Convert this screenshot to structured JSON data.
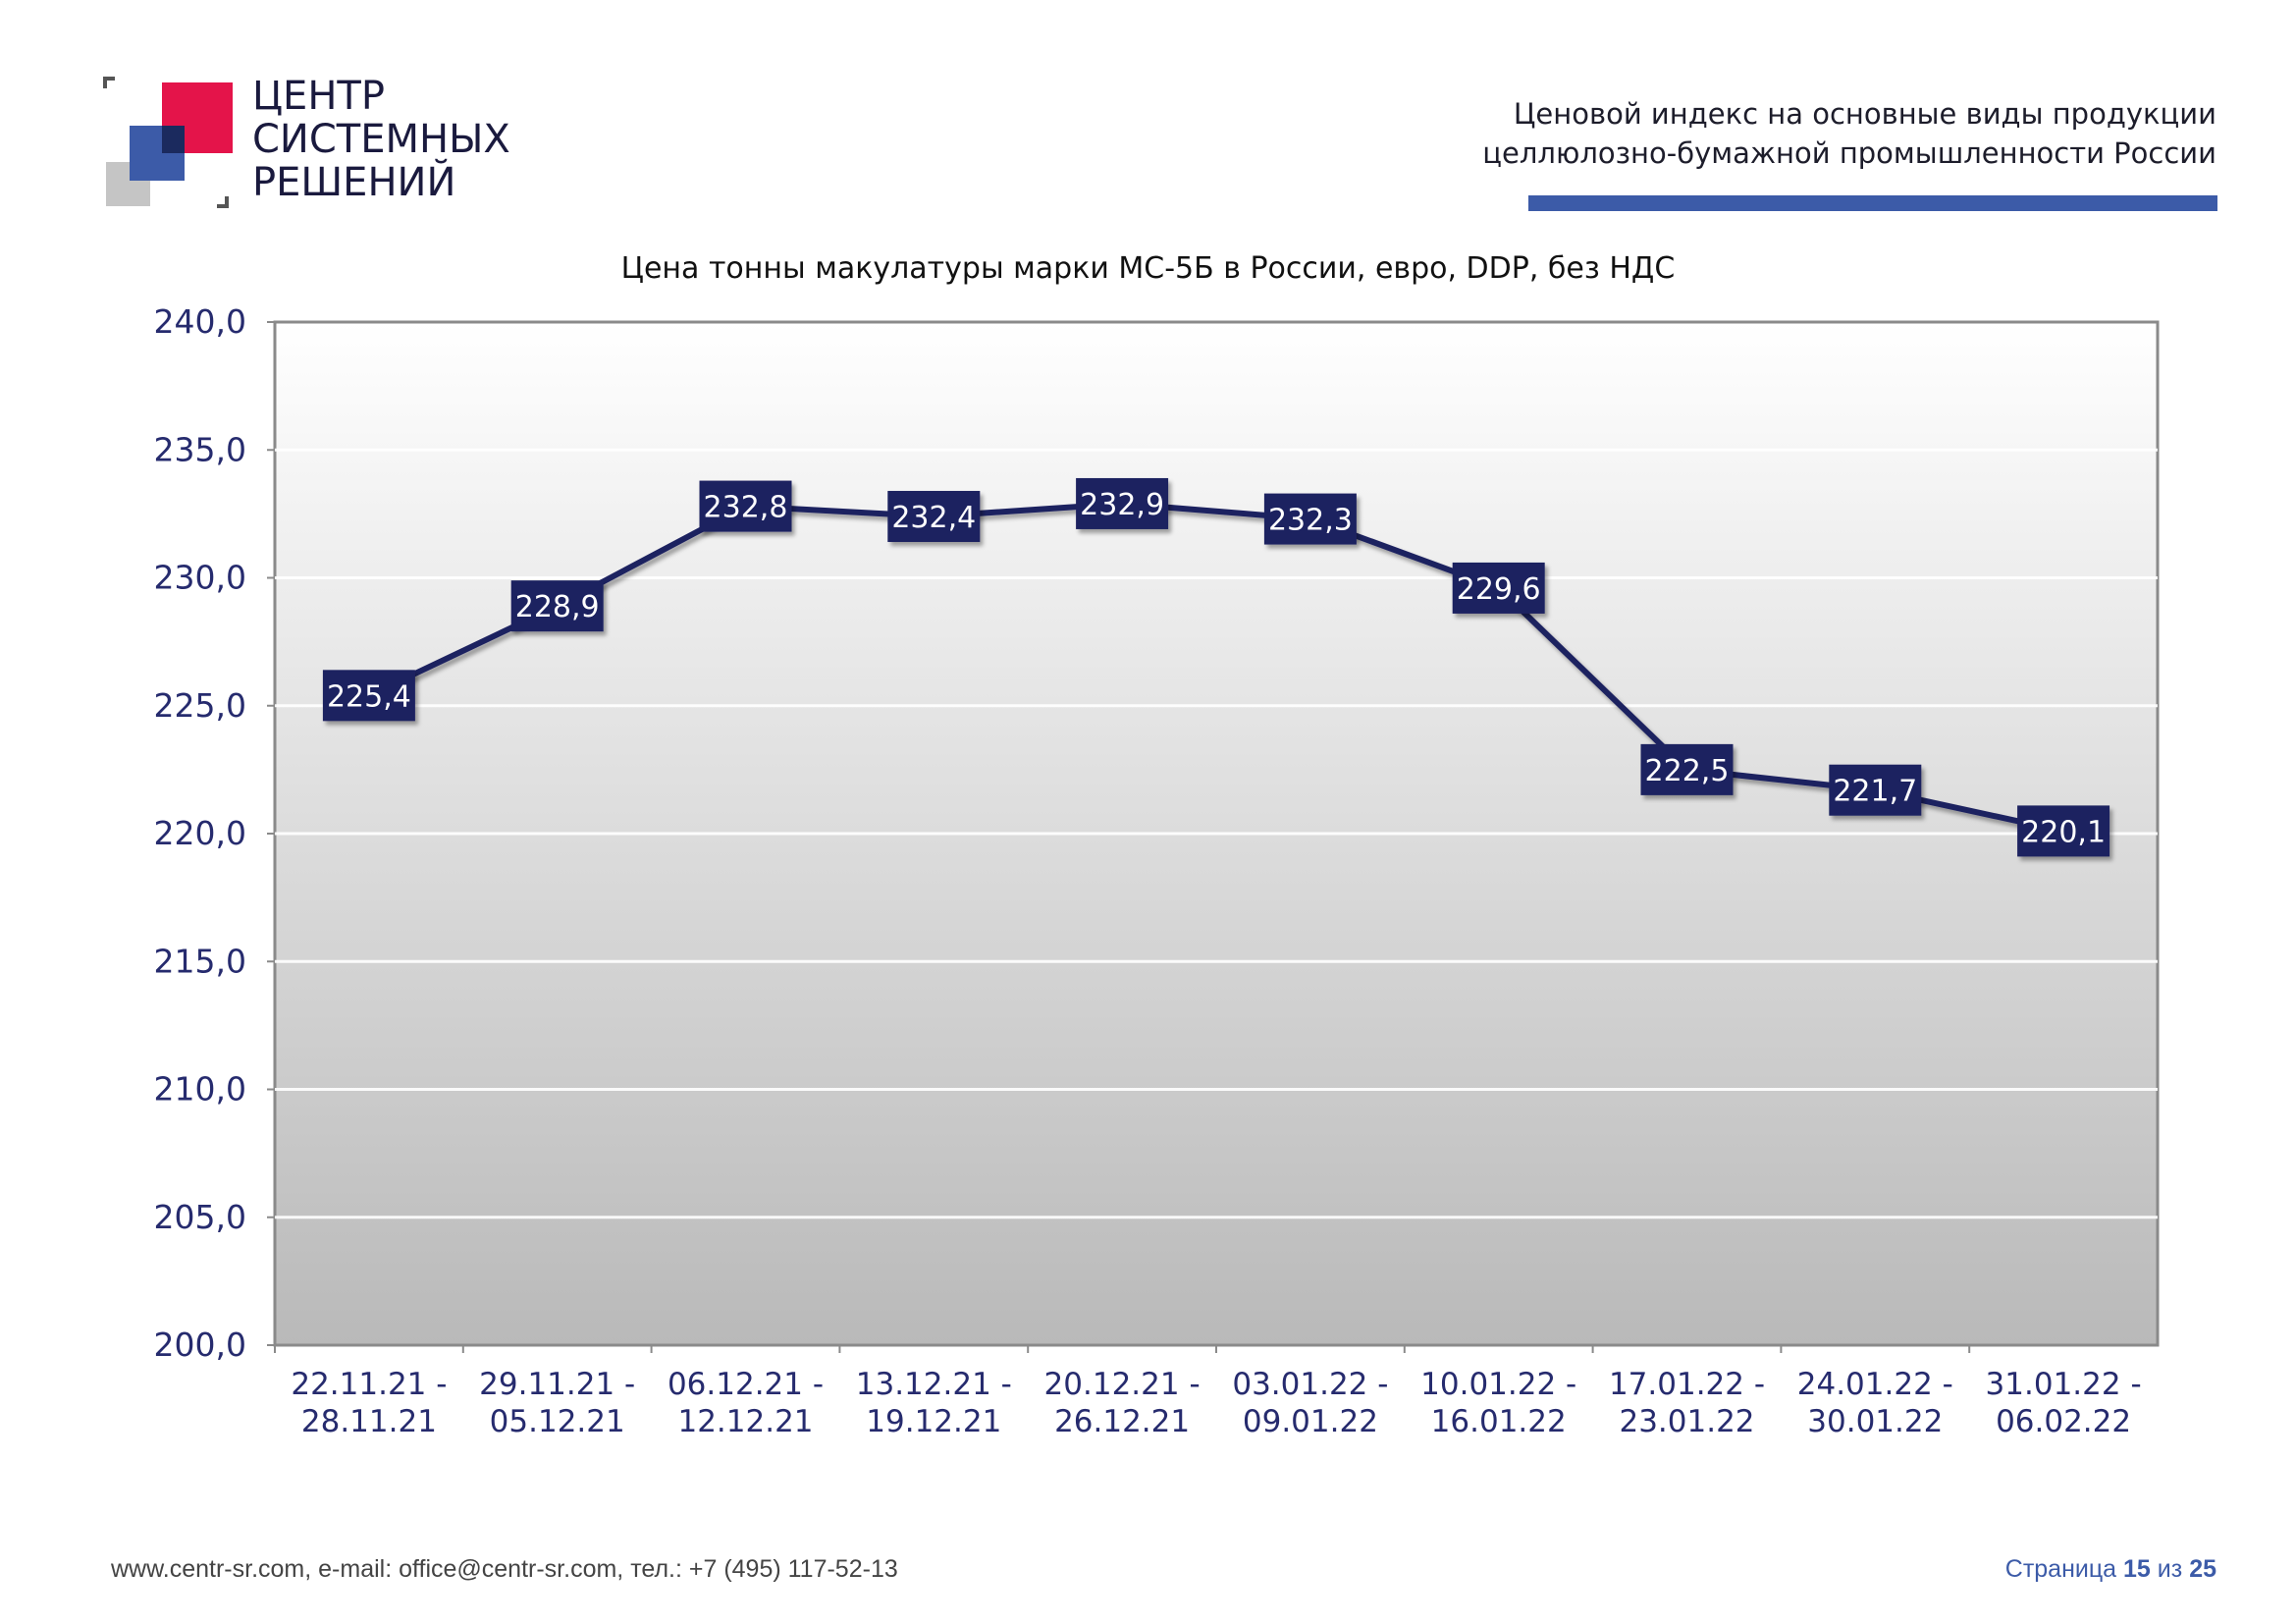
{
  "logo": {
    "lines": [
      "ЦЕНТР",
      "СИСТЕМНЫХ",
      "РЕШЕНИЙ"
    ],
    "colors": {
      "red": "#e4144a",
      "blue": "#3c5ba8",
      "dark": "#1b2a5e",
      "gray": "#c5c5c5"
    }
  },
  "header": {
    "line1": "Ценовой  индекс  на  основные виды продукции",
    "line2": "целлюлозно-бумажной промышленности России",
    "bar_color": "#3c5ba8"
  },
  "chart_data": {
    "type": "line",
    "title": "Цена тонны макулатуры марки МС-5Б в России, евро, DDP, без НДС",
    "categories": [
      [
        "22.11.21 -",
        "28.11.21"
      ],
      [
        "29.11.21 -",
        "05.12.21"
      ],
      [
        "06.12.21 -",
        "12.12.21"
      ],
      [
        "13.12.21 -",
        "19.12.21"
      ],
      [
        "20.12.21 -",
        "26.12.21"
      ],
      [
        "03.01.22 -",
        "09.01.22"
      ],
      [
        "10.01.22 -",
        "16.01.22"
      ],
      [
        "17.01.22 -",
        "23.01.22"
      ],
      [
        "24.01.22 -",
        "30.01.22"
      ],
      [
        "31.01.22 -",
        "06.02.22"
      ]
    ],
    "values": [
      225.4,
      228.9,
      232.8,
      232.4,
      232.9,
      232.3,
      229.6,
      222.5,
      221.7,
      220.1
    ],
    "value_labels": [
      "225,4",
      "228,9",
      "232,8",
      "232,4",
      "232,9",
      "232,3",
      "229,6",
      "222,5",
      "221,7",
      "220,1"
    ],
    "ylim": [
      200,
      240
    ],
    "yticks": [
      "200,0",
      "205,0",
      "210,0",
      "215,0",
      "220,0",
      "225,0",
      "230,0",
      "235,0",
      "240,0"
    ],
    "grid": true,
    "legend": "none",
    "line_color": "#1e2160",
    "axis_label_color": "#262b6e"
  },
  "footer": {
    "contacts": "www.centr-sr.com, e-mail: office@centr-sr.com, тел.: +7 (495) 117-52-13",
    "page_word": "Страница",
    "page_num": "15",
    "of_word": "из",
    "page_total": "25"
  }
}
